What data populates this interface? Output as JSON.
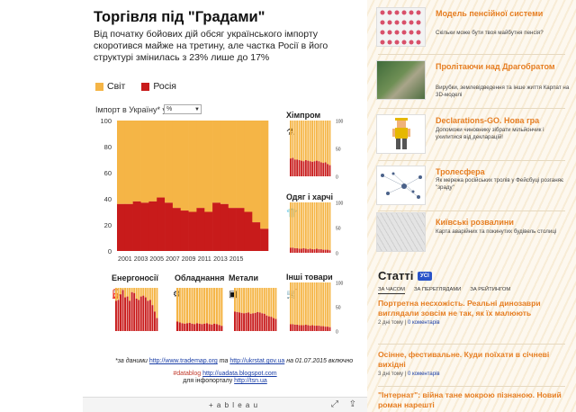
{
  "viz": {
    "title": "Торгівля під \"Градами\"",
    "subtitle": "Від початку бойових дій обсяг українського імпорту скоротився майже на третину, але частка Росії в його структурі змінилась з 23% лише до 17%",
    "legend": [
      {
        "label": "Світ",
        "color": "#f5b546"
      },
      {
        "label": "Росія",
        "color": "#c81b1b"
      }
    ],
    "import_label": "Імпорт в Україну* у",
    "import_select": "%",
    "footnote_prefix": "*за даними ",
    "footnote_link1": "http://www.trademap.org",
    "footnote_mid": " та ",
    "footnote_link2": "http://ukrstat.gov.ua",
    "footnote_suffix": " на 01.07.2015 включно",
    "credit_tag": "#datablog",
    "credit_link1": "http://uadata.blogspot.com",
    "credit_line2_prefix": "для інфопорталу ",
    "credit_link2": "http://tsn.ua",
    "tableau_logo": "+ a b l e a u"
  },
  "chart_data": [
    {
      "type": "bar",
      "title": "",
      "x_ticks": [
        "2001",
        "2003",
        "2005",
        "2007",
        "2009",
        "2011",
        "2013",
        "2015"
      ],
      "ylim": [
        0,
        100
      ],
      "y_ticks": [
        "0",
        "20",
        "40",
        "60",
        "80",
        "100"
      ],
      "series": [
        {
          "name": "Росія",
          "color": "#c81b1b",
          "values": [
            36,
            36,
            38,
            37,
            38,
            41,
            37,
            33,
            31,
            30,
            33,
            30,
            37,
            36,
            33,
            33,
            30,
            22,
            17
          ]
        },
        {
          "name": "Світ",
          "color": "#f5b546",
          "values": [
            64,
            64,
            62,
            63,
            62,
            59,
            63,
            67,
            69,
            70,
            67,
            70,
            63,
            64,
            67,
            67,
            70,
            78,
            83
          ]
        }
      ]
    },
    {
      "type": "bar",
      "title": "Хімпром",
      "icon": "chemistry-flask-icon",
      "y_ticks": [
        "0",
        "50",
        "100"
      ],
      "ylim": [
        0,
        100
      ],
      "values": [
        32,
        33,
        30,
        30,
        29,
        28,
        27,
        29,
        28,
        27,
        26,
        27,
        28,
        27,
        25,
        24,
        25,
        22,
        20
      ]
    },
    {
      "type": "bar",
      "title": "Одяг і харчі",
      "icon": "tshirt-icon",
      "y_ticks": [
        "0",
        "50",
        "100"
      ],
      "ylim": [
        0,
        100
      ],
      "values": [
        10,
        10,
        9,
        9,
        8,
        8,
        9,
        8,
        7,
        8,
        7,
        7,
        8,
        7,
        7,
        6,
        6,
        6,
        5
      ]
    },
    {
      "type": "bar",
      "title": "Енергоносії",
      "icon": "oil-derrick-icon",
      "y_ticks": [],
      "ylim": [
        0,
        100
      ],
      "values": [
        70,
        72,
        85,
        95,
        78,
        80,
        70,
        90,
        88,
        75,
        72,
        80,
        82,
        78,
        70,
        72,
        60,
        45,
        30
      ]
    },
    {
      "type": "bar",
      "title": "Обладнання",
      "icon": "gears-icon",
      "y_ticks": [],
      "ylim": [
        0,
        100
      ],
      "values": [
        22,
        20,
        18,
        17,
        18,
        19,
        17,
        16,
        18,
        17,
        16,
        17,
        18,
        16,
        15,
        17,
        16,
        14,
        12
      ]
    },
    {
      "type": "bar",
      "title": "Метали",
      "icon": "mine-cart-icon",
      "y_ticks": [],
      "ylim": [
        0,
        100
      ],
      "values": [
        45,
        44,
        43,
        42,
        41,
        42,
        43,
        40,
        41,
        42,
        44,
        43,
        41,
        40,
        36,
        34,
        33,
        30,
        28
      ]
    },
    {
      "type": "bar",
      "title": "Інші товари",
      "icon": "shopping-cart-icon",
      "y_ticks": [
        "0",
        "50",
        "100"
      ],
      "ylim": [
        0,
        100
      ],
      "values": [
        14,
        14,
        13,
        13,
        12,
        12,
        12,
        13,
        12,
        11,
        12,
        11,
        11,
        11,
        10,
        10,
        9,
        9,
        8
      ]
    }
  ],
  "sidebar": {
    "items": [
      {
        "title": "Модель пенсійної системи",
        "desc": "Скільки може бути твоя майбутня пенсія?",
        "thumb": "pension-people-thumb"
      },
      {
        "title": "Пролітаючи над Драгобратом",
        "desc": "Вирубки, землевідведення та інше життя Карпат на 3D-моделі",
        "thumb": "aerial-map-thumb"
      },
      {
        "title": "Declarations-GO. Нова гра",
        "desc": "Допоможи чиновнику зібрати мільйончик і ухилитися від декларацій!",
        "thumb": "pixel-character-thumb"
      },
      {
        "title": "Тролесфера",
        "desc": "Як мережа російських тролів у Фейсбуці розганяє \"зраду\"",
        "thumb": "network-graph-thumb"
      },
      {
        "title": "Київські розвалини",
        "desc": "Карта аварійних та покинутих будівель столиці",
        "thumb": "city-map-thumb"
      }
    ],
    "statti_title": "Статті",
    "statti_badge": "УСІ",
    "tabs": [
      "ЗА ЧАСОМ",
      "ЗА ПЕРЕГЛЯДАМИ",
      "ЗА РЕЙТИНГОМ"
    ],
    "articles": [
      {
        "title": "Портретна несхожість. Реальні динозаври виглядали зовсім не так, як їх малюють",
        "time": "2 дні тому",
        "comments": "0 коментарів"
      },
      {
        "title": "Осінне, фестивальне. Куди поїхати в січневі вихідні",
        "time": "3 дні тому",
        "comments": "0 коментарів"
      },
      {
        "title": "\"Інтернат\": війна тане мокрою пізнаною. Новий роман нарешті",
        "time": "",
        "comments": ""
      }
    ]
  }
}
